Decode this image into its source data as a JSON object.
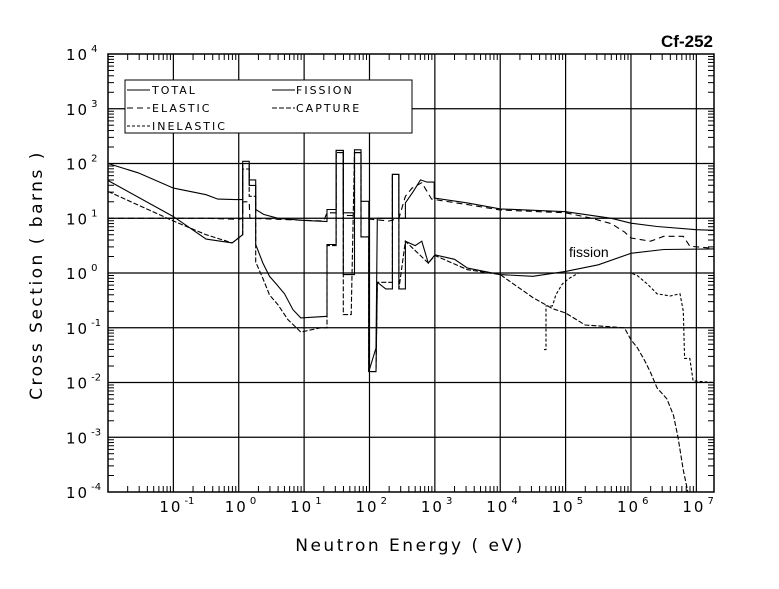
{
  "chart_data": {
    "type": "line",
    "title": "Cf-252",
    "xlabel": "Neutron Energy ( eV)",
    "ylabel": "Cross Section ( barns )",
    "xscale": "log",
    "yscale": "log",
    "xlim_log10": [
      -2,
      7.27
    ],
    "ylim_log10": [
      -4,
      4
    ],
    "grid": true,
    "legend_position": "top-left",
    "x_tick_labels": [
      {
        "log10": -1,
        "base": "10",
        "exp": "-1"
      },
      {
        "log10": 0,
        "base": "10",
        "exp": "0"
      },
      {
        "log10": 1,
        "base": "10",
        "exp": "1"
      },
      {
        "log10": 2,
        "base": "10",
        "exp": "2"
      },
      {
        "log10": 3,
        "base": "10",
        "exp": "3"
      },
      {
        "log10": 4,
        "base": "10",
        "exp": "4"
      },
      {
        "log10": 5,
        "base": "10",
        "exp": "5"
      },
      {
        "log10": 6,
        "base": "10",
        "exp": "6"
      },
      {
        "log10": 7,
        "base": "10",
        "exp": "7"
      }
    ],
    "y_tick_labels": [
      {
        "log10": 4,
        "base": "10",
        "exp": "4"
      },
      {
        "log10": 3,
        "base": "10",
        "exp": "3"
      },
      {
        "log10": 2,
        "base": "10",
        "exp": "2"
      },
      {
        "log10": 1,
        "base": "10",
        "exp": "1"
      },
      {
        "log10": 0,
        "base": "10",
        "exp": "0"
      },
      {
        "log10": -1,
        "base": "10",
        "exp": "-1"
      },
      {
        "log10": -2,
        "base": "10",
        "exp": "-2"
      },
      {
        "log10": -3,
        "base": "10",
        "exp": "-3"
      },
      {
        "log10": -4,
        "base": "10",
        "exp": "-4"
      }
    ],
    "legend": [
      {
        "label": "TOTAL",
        "dash": "solid"
      },
      {
        "label": "FISSION",
        "dash": "solid"
      },
      {
        "label": "ELASTIC",
        "dash": "dashed"
      },
      {
        "label": "CAPTURE",
        "dash": "dash-dot"
      },
      {
        "label": "INELASTIC",
        "dash": "dotted"
      }
    ],
    "annotations": [
      {
        "text": "fission",
        "log10_x": 5.05,
        "log10_y": 0.38
      }
    ],
    "series_note": "points are [log10(E/eV), log10(sigma/barns)]",
    "series": [
      {
        "name": "TOTAL",
        "dash": "solid",
        "points": [
          [
            -2,
            2.0
          ],
          [
            -1.54,
            1.83
          ],
          [
            -1,
            1.55
          ],
          [
            -0.5,
            1.43
          ],
          [
            -0.32,
            1.35
          ],
          [
            -0.05,
            1.34
          ],
          [
            0.06,
            1.34
          ],
          [
            0.06,
            2.04
          ],
          [
            0.16,
            2.04
          ],
          [
            0.16,
            1.7
          ],
          [
            0.26,
            1.7
          ],
          [
            0.26,
            1.16
          ],
          [
            0.38,
            1.07
          ],
          [
            0.6,
            1.0
          ],
          [
            1.0,
            0.96
          ],
          [
            1.35,
            0.94
          ],
          [
            1.35,
            1.16
          ],
          [
            1.49,
            1.16
          ],
          [
            1.49,
            2.24
          ],
          [
            1.6,
            2.24
          ],
          [
            1.6,
            1.1
          ],
          [
            1.77,
            1.1
          ],
          [
            1.77,
            2.25
          ],
          [
            1.87,
            2.25
          ],
          [
            1.87,
            1.31
          ],
          [
            1.99,
            1.31
          ],
          [
            1.99,
            -1.8
          ],
          [
            2.1,
            -1.37
          ],
          [
            2.12,
            1.0
          ],
          [
            2.35,
            1.0
          ],
          [
            2.35,
            1.8
          ],
          [
            2.45,
            1.8
          ],
          [
            2.45,
            1.0
          ],
          [
            2.55,
            1.0
          ],
          [
            2.55,
            1.28
          ],
          [
            2.67,
            1.49
          ],
          [
            2.78,
            1.7
          ],
          [
            2.88,
            1.66
          ],
          [
            2.99,
            1.66
          ],
          [
            2.99,
            1.37
          ],
          [
            3.5,
            1.28
          ],
          [
            4.0,
            1.17
          ],
          [
            5.0,
            1.12
          ],
          [
            5.7,
            1.0
          ],
          [
            6.0,
            0.91
          ],
          [
            6.4,
            0.85
          ],
          [
            7.0,
            0.79
          ],
          [
            7.27,
            0.78
          ]
        ]
      },
      {
        "name": "ELASTIC",
        "dash": "dashed",
        "points": [
          [
            -2,
            1.0
          ],
          [
            -0.5,
            1.0
          ],
          [
            0,
            0.98
          ],
          [
            0.06,
            1.0
          ],
          [
            0.06,
            1.3
          ],
          [
            0.16,
            1.3
          ],
          [
            0.17,
            1.0
          ],
          [
            1.3,
            0.95
          ],
          [
            1.35,
            1.1
          ],
          [
            1.49,
            1.1
          ],
          [
            1.49,
            2.2
          ],
          [
            1.6,
            2.2
          ],
          [
            1.6,
            1.05
          ],
          [
            1.77,
            1.05
          ],
          [
            1.77,
            2.2
          ],
          [
            1.87,
            2.2
          ],
          [
            1.87,
            1.0
          ],
          [
            2.3,
            0.95
          ],
          [
            2.45,
            1.0
          ],
          [
            2.55,
            1.4
          ],
          [
            2.65,
            1.55
          ],
          [
            2.8,
            1.65
          ],
          [
            2.95,
            1.35
          ],
          [
            3.5,
            1.25
          ],
          [
            4.0,
            1.15
          ],
          [
            5.0,
            1.1
          ],
          [
            5.4,
            1.0
          ],
          [
            5.7,
            0.9
          ],
          [
            5.9,
            0.75
          ],
          [
            6.0,
            0.64
          ],
          [
            6.3,
            0.58
          ],
          [
            6.5,
            0.67
          ],
          [
            6.8,
            0.67
          ],
          [
            6.9,
            0.49
          ],
          [
            7.27,
            0.45
          ]
        ]
      },
      {
        "name": "FISSION",
        "dash": "solid",
        "points": [
          [
            -2,
            1.69
          ],
          [
            -1,
            1.03
          ],
          [
            -0.5,
            0.62
          ],
          [
            -0.1,
            0.55
          ],
          [
            0.06,
            0.7
          ],
          [
            0.06,
            2.0
          ],
          [
            0.16,
            2.0
          ],
          [
            0.16,
            1.6
          ],
          [
            0.26,
            1.6
          ],
          [
            0.26,
            0.52
          ],
          [
            0.37,
            0.18
          ],
          [
            0.47,
            -0.06
          ],
          [
            0.58,
            -0.21
          ],
          [
            0.7,
            -0.38
          ],
          [
            0.83,
            -0.67
          ],
          [
            0.95,
            -0.82
          ],
          [
            1.35,
            -0.79
          ],
          [
            1.35,
            0.52
          ],
          [
            1.49,
            0.52
          ],
          [
            1.49,
            2.24
          ],
          [
            1.6,
            2.24
          ],
          [
            1.6,
            -0.03
          ],
          [
            1.77,
            -0.03
          ],
          [
            1.77,
            2.2
          ],
          [
            1.87,
            2.2
          ],
          [
            1.87,
            0.66
          ],
          [
            1.99,
            0.66
          ],
          [
            1.99,
            -1.8
          ],
          [
            2.1,
            -1.8
          ],
          [
            2.12,
            -0.17
          ],
          [
            2.25,
            -0.29
          ],
          [
            2.35,
            -0.29
          ],
          [
            2.35,
            1.8
          ],
          [
            2.45,
            1.8
          ],
          [
            2.45,
            -0.29
          ],
          [
            2.55,
            -0.29
          ],
          [
            2.55,
            0.58
          ],
          [
            2.7,
            0.5
          ],
          [
            2.8,
            0.58
          ],
          [
            2.9,
            0.18
          ],
          [
            3.0,
            0.33
          ],
          [
            3.3,
            0.25
          ],
          [
            3.5,
            0.09
          ],
          [
            4.0,
            -0.03
          ],
          [
            4.5,
            -0.06
          ],
          [
            5.0,
            0.03
          ],
          [
            5.5,
            0.15
          ],
          [
            6.0,
            0.36
          ],
          [
            6.5,
            0.43
          ],
          [
            7.27,
            0.44
          ]
        ]
      },
      {
        "name": "CAPTURE",
        "dash": "dash-dot",
        "points": [
          [
            -2,
            1.49
          ],
          [
            -1,
            0.95
          ],
          [
            -0.5,
            0.7
          ],
          [
            -0.1,
            0.55
          ],
          [
            0.06,
            0.7
          ],
          [
            0.06,
            1.9
          ],
          [
            0.16,
            1.9
          ],
          [
            0.16,
            1.4
          ],
          [
            0.26,
            1.4
          ],
          [
            0.26,
            0.2
          ],
          [
            0.37,
            -0.1
          ],
          [
            0.47,
            -0.4
          ],
          [
            0.6,
            -0.58
          ],
          [
            0.75,
            -0.85
          ],
          [
            0.95,
            -1.08
          ],
          [
            1.25,
            -1.0
          ],
          [
            1.35,
            -1.0
          ],
          [
            1.35,
            0.5
          ],
          [
            1.49,
            0.5
          ],
          [
            1.49,
            2.2
          ],
          [
            1.6,
            2.2
          ],
          [
            1.6,
            -0.76
          ],
          [
            1.72,
            -0.76
          ],
          [
            1.77,
            2.2
          ],
          [
            1.87,
            2.2
          ],
          [
            1.87,
            0.66
          ],
          [
            1.99,
            0.66
          ],
          [
            1.99,
            -1.8
          ],
          [
            2.1,
            -1.8
          ],
          [
            2.12,
            -0.17
          ],
          [
            2.35,
            -0.17
          ],
          [
            2.35,
            1.8
          ],
          [
            2.45,
            1.8
          ],
          [
            2.45,
            -0.29
          ],
          [
            2.55,
            0.58
          ],
          [
            2.9,
            0.18
          ],
          [
            3.0,
            0.32
          ],
          [
            3.5,
            0.06
          ],
          [
            4.0,
            -0.03
          ],
          [
            4.5,
            -0.45
          ],
          [
            4.8,
            -0.65
          ],
          [
            5.0,
            -0.73
          ],
          [
            5.3,
            -0.95
          ],
          [
            5.9,
            -1.0
          ],
          [
            6.0,
            -1.22
          ],
          [
            6.1,
            -1.37
          ],
          [
            6.2,
            -1.58
          ],
          [
            6.3,
            -1.82
          ],
          [
            6.4,
            -2.1
          ],
          [
            6.55,
            -2.3
          ],
          [
            6.65,
            -2.6
          ],
          [
            6.72,
            -3.0
          ],
          [
            6.8,
            -3.6
          ],
          [
            6.87,
            -4.0
          ]
        ]
      },
      {
        "name": "INELASTIC",
        "dash": "dotted",
        "points": [
          [
            4.67,
            -1.4
          ],
          [
            4.7,
            -1.4
          ],
          [
            4.7,
            -0.6
          ],
          [
            4.8,
            -0.6
          ],
          [
            4.85,
            -0.4
          ],
          [
            4.95,
            -0.2
          ],
          [
            5.05,
            -0.1
          ],
          [
            5.2,
            0.0
          ],
          [
            5.5,
            0.0
          ],
          [
            6.0,
            0.0
          ],
          [
            6.1,
            -0.05
          ],
          [
            6.25,
            -0.2
          ],
          [
            6.4,
            -0.38
          ],
          [
            6.6,
            -0.42
          ],
          [
            6.75,
            -0.38
          ],
          [
            6.8,
            -0.7
          ],
          [
            6.82,
            -1.56
          ],
          [
            6.9,
            -1.56
          ],
          [
            6.95,
            -1.97
          ],
          [
            7.27,
            -2.0
          ]
        ]
      }
    ]
  }
}
